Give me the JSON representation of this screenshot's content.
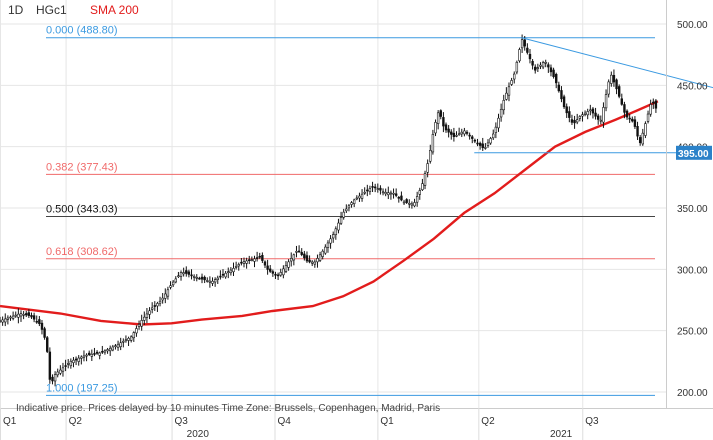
{
  "header": {
    "interval": "1D",
    "symbol": "HGc1",
    "indicator": "SMA 200"
  },
  "footer_note": "Indicative price. Prices delayed by 10 minutes    Time Zone: Brussels, Copenhagen, Madrid, Paris",
  "colors": {
    "price": "#111111",
    "sma": "#e21c1c",
    "fib_blue": "#3b9ae1",
    "fib_red": "#f06a6a",
    "fib_black": "#444444",
    "trend": "#3b9ae1",
    "badge_bg": "#2b82c9",
    "grid": "#e6e6e6"
  },
  "chart_data": {
    "type": "line",
    "price_style": "candlestick",
    "ylim": [
      190,
      505
    ],
    "yticks": [
      200,
      250,
      300,
      350,
      400,
      450,
      500
    ],
    "ytick_labels": [
      "200.00",
      "250.00",
      "300.00",
      "350.00",
      "400.00",
      "450.00",
      "500.00"
    ],
    "grid": true,
    "x_tick_labels": [
      {
        "label": "Q1",
        "t": 0.0
      },
      {
        "label": "Q2",
        "t": 65.0
      },
      {
        "label": "Q3",
        "t": 170.0
      },
      {
        "label": "Q4",
        "t": 272.0
      },
      {
        "label": "Q1",
        "t": 374.0
      },
      {
        "label": "Q2",
        "t": 474.0
      },
      {
        "label": "Q3",
        "t": 577.0
      }
    ],
    "x_year_labels": [
      {
        "label": "2020",
        "t": 185.0
      },
      {
        "label": "2021",
        "t": 545.0
      }
    ],
    "price_close_path": [
      [
        0,
        258
      ],
      [
        10,
        261
      ],
      [
        20,
        264
      ],
      [
        30,
        262
      ],
      [
        40,
        255
      ],
      [
        46,
        240
      ],
      [
        50,
        205
      ],
      [
        55,
        215
      ],
      [
        60,
        218
      ],
      [
        70,
        225
      ],
      [
        85,
        230
      ],
      [
        100,
        232
      ],
      [
        115,
        238
      ],
      [
        130,
        245
      ],
      [
        140,
        258
      ],
      [
        150,
        268
      ],
      [
        160,
        275
      ],
      [
        170,
        288
      ],
      [
        180,
        298
      ],
      [
        190,
        295
      ],
      [
        200,
        292
      ],
      [
        210,
        290
      ],
      [
        220,
        295
      ],
      [
        230,
        300
      ],
      [
        240,
        306
      ],
      [
        250,
        308
      ],
      [
        258,
        310
      ],
      [
        265,
        300
      ],
      [
        275,
        294
      ],
      [
        285,
        305
      ],
      [
        295,
        316
      ],
      [
        305,
        306
      ],
      [
        312,
        306
      ],
      [
        320,
        315
      ],
      [
        330,
        328
      ],
      [
        340,
        346
      ],
      [
        350,
        356
      ],
      [
        360,
        362
      ],
      [
        370,
        368
      ],
      [
        380,
        363
      ],
      [
        390,
        362
      ],
      [
        400,
        355
      ],
      [
        410,
        353
      ],
      [
        418,
        368
      ],
      [
        425,
        390
      ],
      [
        430,
        415
      ],
      [
        435,
        430
      ],
      [
        440,
        415
      ],
      [
        450,
        408
      ],
      [
        460,
        413
      ],
      [
        470,
        405
      ],
      [
        480,
        398
      ],
      [
        490,
        412
      ],
      [
        500,
        440
      ],
      [
        510,
        460
      ],
      [
        517,
        488
      ],
      [
        522,
        478
      ],
      [
        530,
        462
      ],
      [
        540,
        470
      ],
      [
        550,
        455
      ],
      [
        560,
        430
      ],
      [
        568,
        418
      ],
      [
        575,
        425
      ],
      [
        585,
        430
      ],
      [
        595,
        420
      ],
      [
        605,
        460
      ],
      [
        612,
        445
      ],
      [
        620,
        425
      ],
      [
        628,
        420
      ],
      [
        634,
        402
      ],
      [
        640,
        420
      ],
      [
        646,
        438
      ],
      [
        652,
        428
      ]
    ],
    "series": [
      {
        "name": "SMA 200",
        "points": [
          [
            0,
            270
          ],
          [
            30,
            267
          ],
          [
            60,
            264
          ],
          [
            100,
            258
          ],
          [
            140,
            255
          ],
          [
            170,
            256
          ],
          [
            200,
            259
          ],
          [
            240,
            262
          ],
          [
            270,
            266
          ],
          [
            310,
            270
          ],
          [
            340,
            278
          ],
          [
            370,
            290
          ],
          [
            400,
            307
          ],
          [
            430,
            325
          ],
          [
            460,
            346
          ],
          [
            490,
            362
          ],
          [
            520,
            381
          ],
          [
            550,
            400
          ],
          [
            580,
            412
          ],
          [
            610,
            422
          ],
          [
            630,
            429
          ],
          [
            652,
            437
          ]
        ]
      }
    ],
    "fibonacci": [
      {
        "ratio_label": "0.000 (488.80)",
        "value": 488.8,
        "color": "fib_blue"
      },
      {
        "ratio_label": "0.382 (377.43)",
        "value": 377.43,
        "color": "fib_red"
      },
      {
        "ratio_label": "0.500 (343.03)",
        "value": 343.03,
        "color": "fib_black"
      },
      {
        "ratio_label": "0.618 (308.62)",
        "value": 308.62,
        "color": "fib_red"
      },
      {
        "ratio_label": "1.000 (197.25)",
        "value": 197.25,
        "color": "fib_blue"
      }
    ],
    "trendline": {
      "from": [
        517,
        488.8
      ],
      "to": [
        700,
        447
      ]
    },
    "support_line": {
      "from": [
        470,
        395
      ],
      "to": [
        700,
        395
      ]
    },
    "price_badge": {
      "label": "395.00",
      "value": 395
    }
  }
}
